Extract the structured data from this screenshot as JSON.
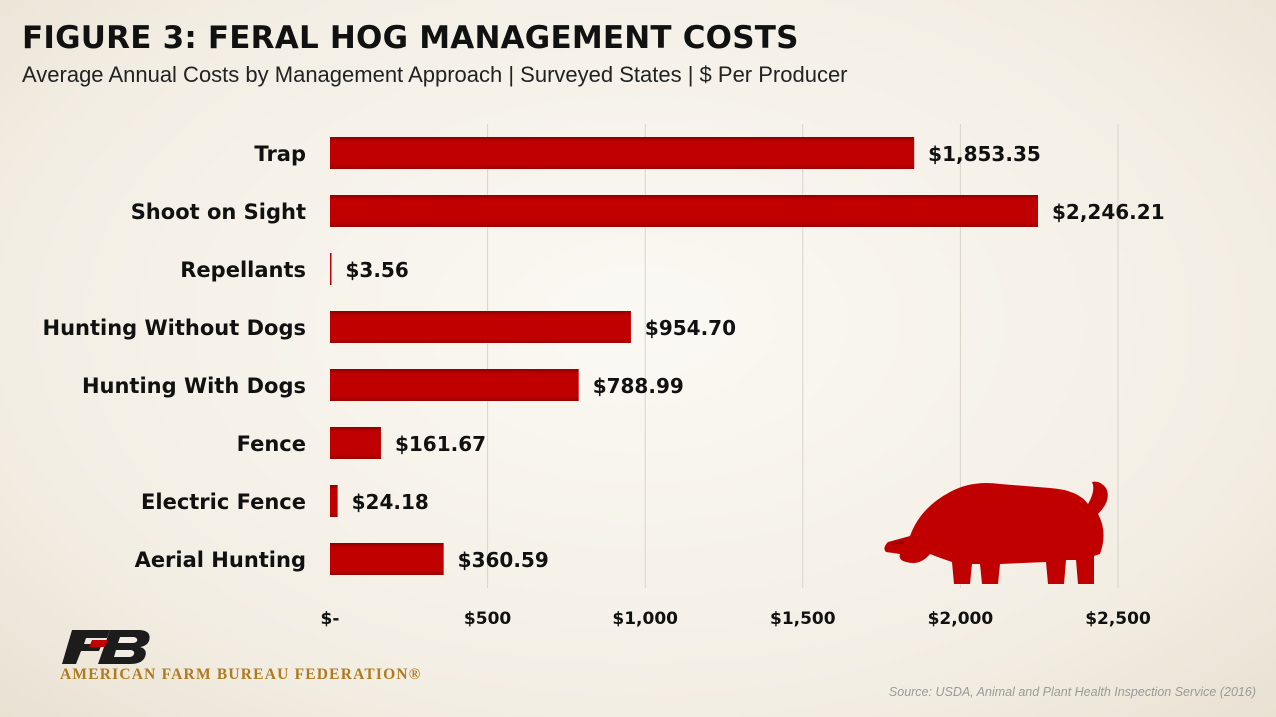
{
  "header": {
    "title": "FIGURE 3: FERAL HOG MANAGEMENT COSTS",
    "subtitle": "Average Annual Costs by Management Approach | Surveyed States | $ Per Producer"
  },
  "chart_data": {
    "type": "bar",
    "orientation": "horizontal",
    "categories": [
      "Trap",
      "Shoot on Sight",
      "Repellants",
      "Hunting Without Dogs",
      "Hunting With Dogs",
      "Fence",
      "Electric Fence",
      "Aerial Hunting"
    ],
    "values": [
      1853.35,
      2246.21,
      3.56,
      954.7,
      788.99,
      161.67,
      24.18,
      360.59
    ],
    "value_labels": [
      "$1,853.35",
      "$2,246.21",
      "$3.56",
      "$954.70",
      "$788.99",
      "$161.67",
      "$24.18",
      "$360.59"
    ],
    "xlim": [
      0,
      2500
    ],
    "x_ticks": [
      0,
      500,
      1000,
      1500,
      2000,
      2500
    ],
    "x_tick_labels": [
      "$-",
      "$500",
      "$1,000",
      "$1,500",
      "$2,000",
      "$2,500"
    ],
    "grid": "vertical",
    "bar_color": "#c00000"
  },
  "footer": {
    "logo_letters": "FB",
    "org_name": "AMERICAN FARM BUREAU FEDERATION®",
    "source": "Source: USDA, Animal and Plant Health Inspection Service (2016)"
  },
  "decoration": {
    "pig_icon": "pig-silhouette-icon",
    "logo_icon": "farm-bureau-logo-icon"
  }
}
